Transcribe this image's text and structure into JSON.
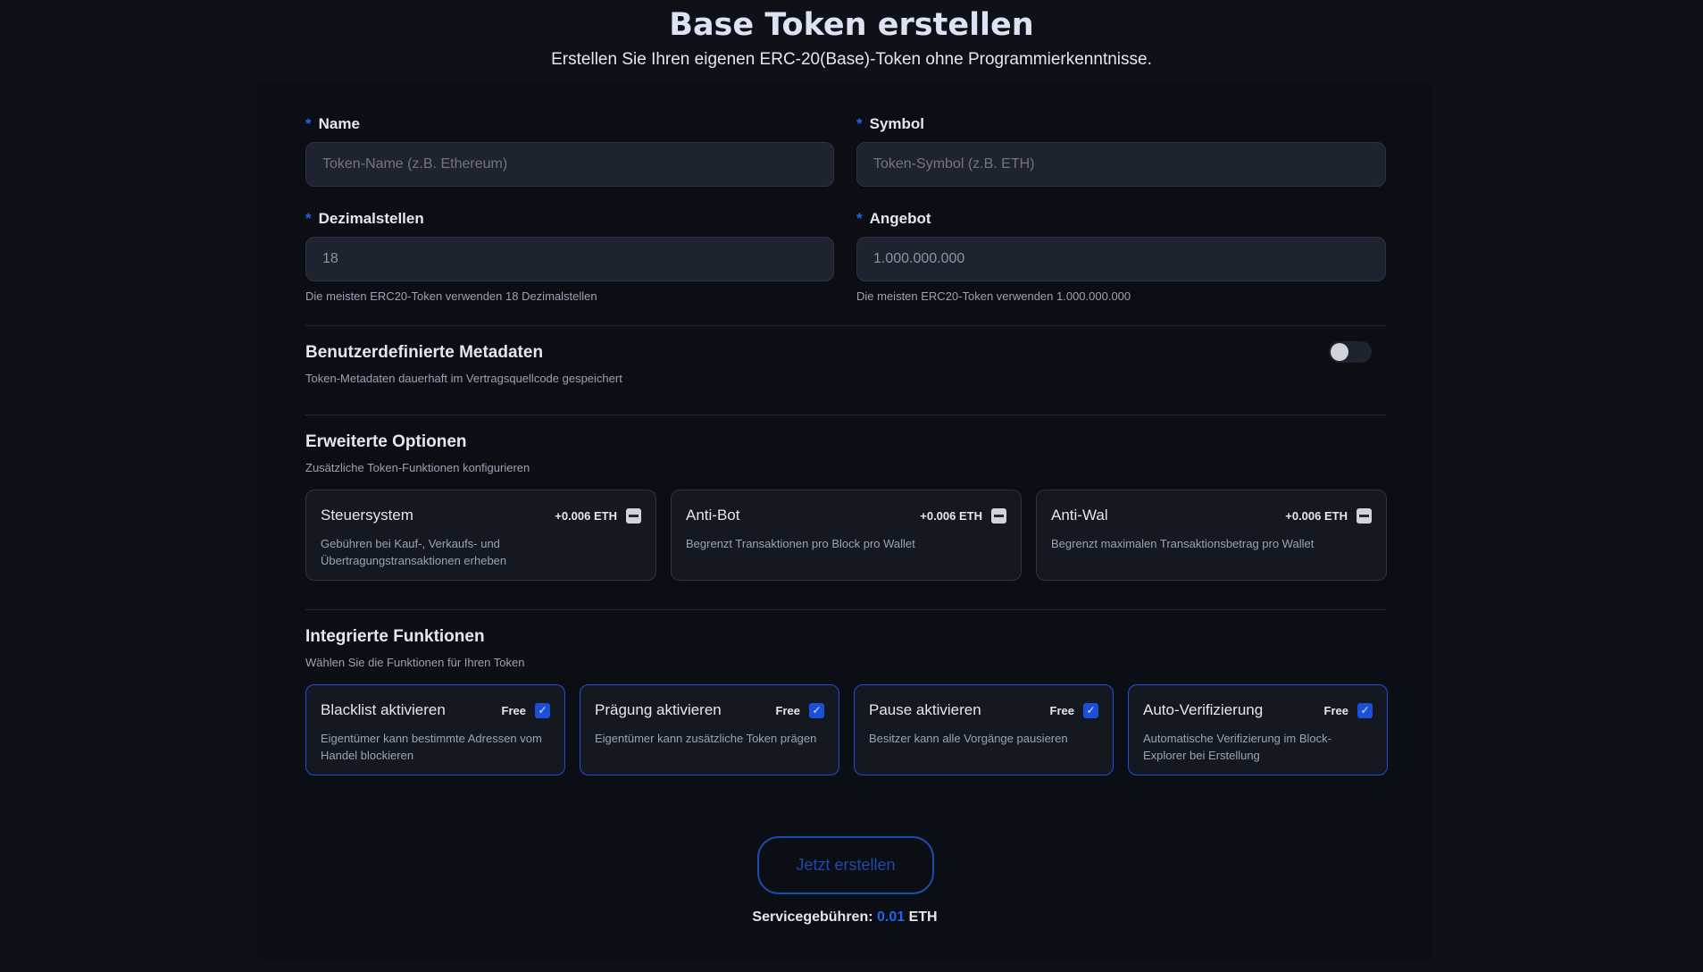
{
  "header": {
    "title": "Base Token erstellen",
    "subtitle": "Erstellen Sie Ihren eigenen ERC-20(Base)-Token ohne Programmierkenntnisse."
  },
  "fields": {
    "name": {
      "label": "Name",
      "required": "*",
      "placeholder": "Token-Name (z.B. Ethereum)"
    },
    "symbol": {
      "label": "Symbol",
      "required": "*",
      "placeholder": "Token-Symbol (z.B. ETH)"
    },
    "decimals": {
      "label": "Dezimalstellen",
      "required": "*",
      "value": "18",
      "hint": "Die meisten ERC20-Token verwenden 18 Dezimalstellen"
    },
    "supply": {
      "label": "Angebot",
      "required": "*",
      "value": "1.000.000.000",
      "hint": "Die meisten ERC20-Token verwenden 1.000.000.000"
    }
  },
  "metadata": {
    "title": "Benutzerdefinierte Metadaten",
    "subtitle": "Token-Metadaten dauerhaft im Vertragsquellcode gespeichert",
    "enabled": false
  },
  "advanced": {
    "title": "Erweiterte Optionen",
    "subtitle": "Zusätzliche Token-Funktionen konfigurieren",
    "options": [
      {
        "name": "Steuersystem",
        "price": "+0.006 ETH",
        "desc": "Gebühren bei Kauf-, Verkaufs- und Übertragungstransaktionen erheben",
        "state": "unchecked"
      },
      {
        "name": "Anti-Bot",
        "price": "+0.006 ETH",
        "desc": "Begrenzt Transaktionen pro Block pro Wallet",
        "state": "unchecked"
      },
      {
        "name": "Anti-Wal",
        "price": "+0.006 ETH",
        "desc": "Begrenzt maximalen Transaktionsbetrag pro Wallet",
        "state": "unchecked"
      }
    ]
  },
  "integrated": {
    "title": "Integrierte Funktionen",
    "subtitle": "Wählen Sie die Funktionen für Ihren Token",
    "features": [
      {
        "name": "Blacklist aktivieren",
        "price": "Free",
        "desc": "Eigentümer kann bestimmte Adressen vom Handel blockieren",
        "checked": true
      },
      {
        "name": "Prägung aktivieren",
        "price": "Free",
        "desc": "Eigentümer kann zusätzliche Token prägen",
        "checked": true
      },
      {
        "name": "Pause aktivieren",
        "price": "Free",
        "desc": "Besitzer kann alle Vorgänge pausieren",
        "checked": true
      },
      {
        "name": "Auto-Verifizierung",
        "price": "Free",
        "desc": "Automatische Verifizierung im Block-Explorer bei Erstellung",
        "checked": true
      }
    ]
  },
  "submit": {
    "label": "Jetzt erstellen",
    "fee_label": "Servicegebühren:",
    "fee_value": "0.01",
    "fee_unit": "ETH"
  },
  "colors": {
    "accent": "#2563eb",
    "background": "#0e1118"
  }
}
